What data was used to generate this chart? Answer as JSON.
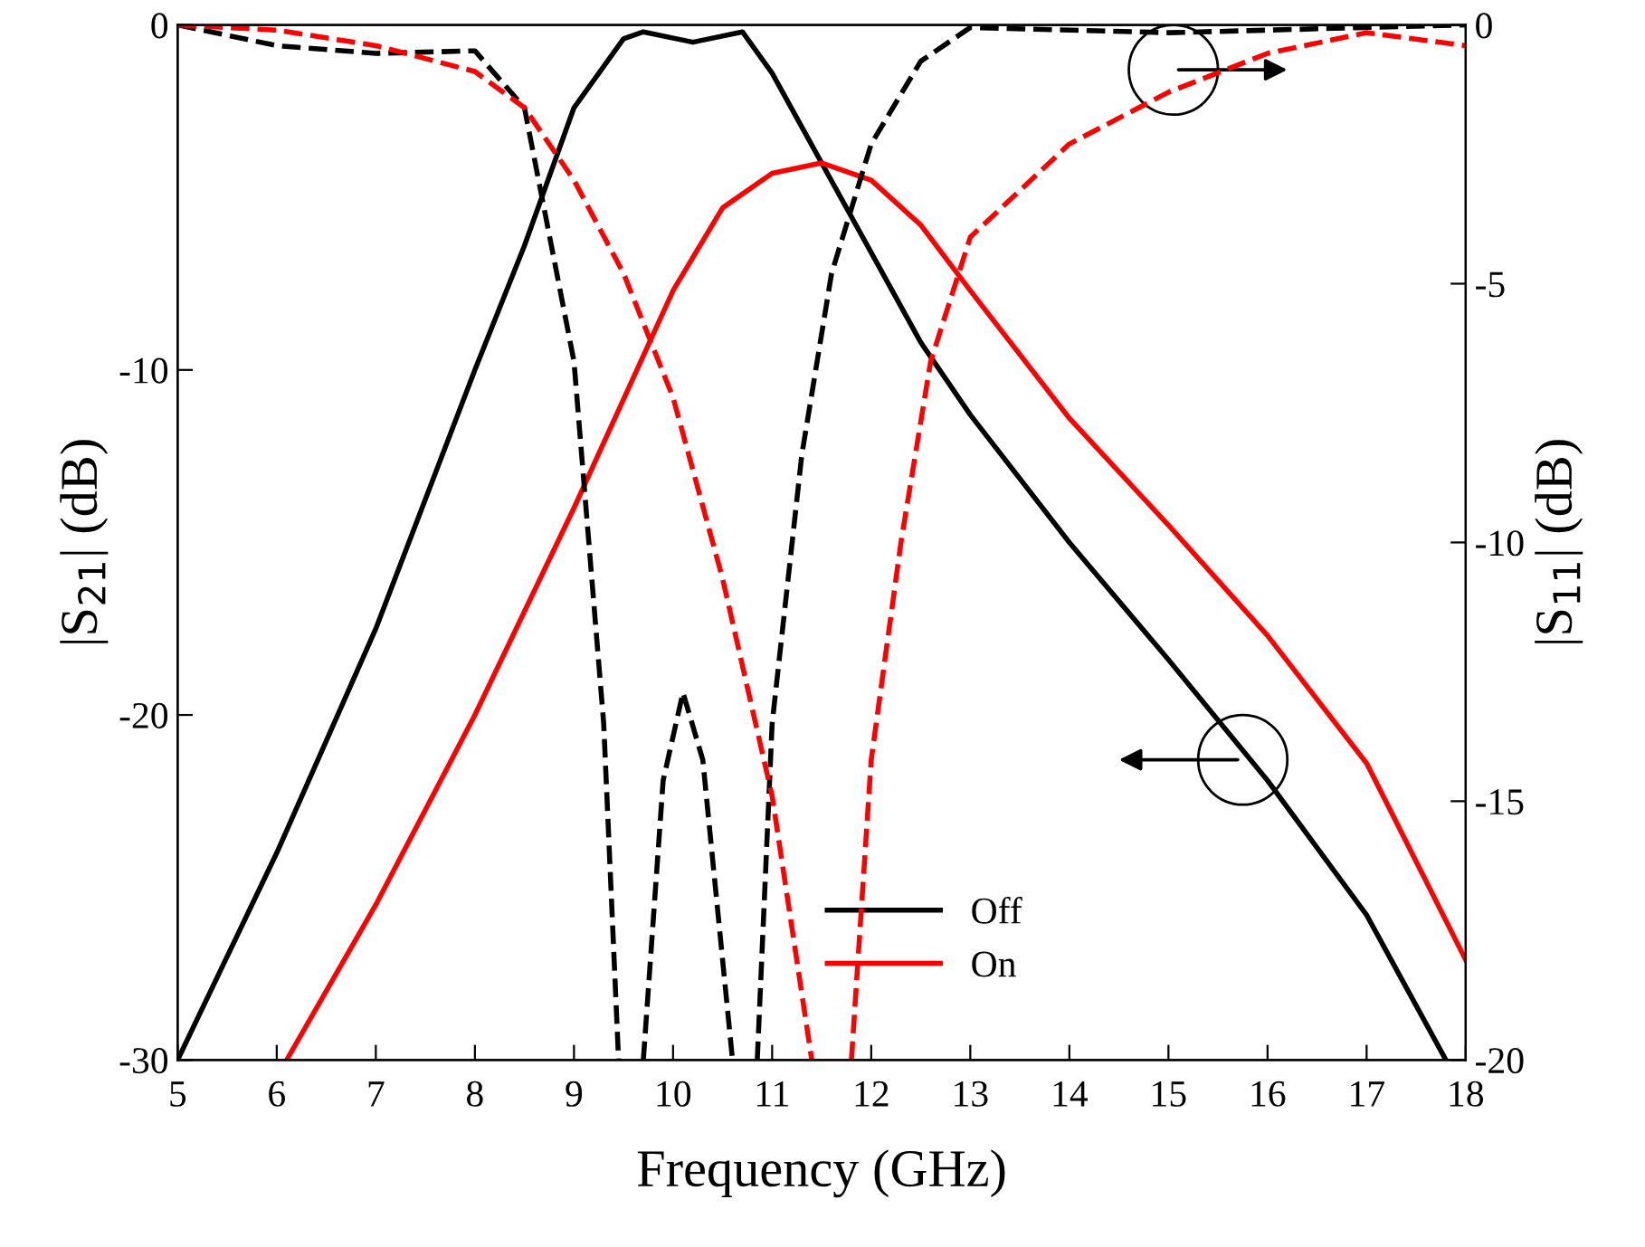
{
  "chart_data": {
    "type": "line",
    "xlabel": "Frequency (GHz)",
    "ylabel": "|S$_{21}$| (dB)",
    "y2label": "|S$_{11}$| (dB)",
    "xlim": [
      5,
      18
    ],
    "xticks": [
      5,
      6,
      7,
      8,
      9,
      10,
      11,
      12,
      13,
      14,
      15,
      16,
      17,
      18
    ],
    "ylim": [
      -30,
      0
    ],
    "yticks": [
      -30,
      -20,
      -10,
      0
    ],
    "y2lim": [
      -20,
      0
    ],
    "y2ticks": [
      -20,
      -15,
      -10,
      -5,
      0
    ],
    "grid": false,
    "legend": "bottom",
    "marker": "none",
    "series": [
      {
        "name": "Off",
        "color": "#000000",
        "line_style": "solid",
        "x": [
          5,
          6,
          7,
          8,
          8.5,
          9,
          9.5,
          9.7,
          10.2,
          10.7,
          11,
          11.5,
          12,
          12.5,
          13,
          14,
          15,
          16,
          17,
          17.8
        ],
        "values": [
          -30,
          -24,
          -17.5,
          -10,
          -6.4,
          -2.4,
          -0.4,
          -0.2,
          -0.5,
          -0.2,
          -1.4,
          -4,
          -6.6,
          -9.2,
          -11.3,
          -15,
          -18.4,
          -21.9,
          -25.8,
          -30
        ]
      },
      {
        "name": "On",
        "color": "#ff0000",
        "line_style": "solid",
        "x": [
          6.1,
          7,
          8,
          9,
          10,
          10.5,
          11,
          11.5,
          12,
          12.5,
          13,
          14,
          15,
          16,
          17,
          18
        ],
        "values": [
          -30,
          -25.5,
          -20,
          -14,
          -7.7,
          -5.3,
          -4.3,
          -4,
          -4.5,
          -5.8,
          -7.7,
          -11.4,
          -14.5,
          -17.7,
          -21.4,
          -27.1
        ]
      },
      {
        "color": "#000000",
        "line_style": "dashed",
        "axis": "y2",
        "x": [
          5,
          6,
          7,
          8,
          8.5,
          9,
          9.3,
          9.45,
          9.6,
          9.7,
          9.9,
          10.1,
          10.3,
          10.6,
          10.75,
          10.85,
          11,
          11.3,
          11.6,
          12,
          12.5,
          13,
          14,
          15,
          16,
          17,
          18
        ],
        "values": [
          0,
          -0.4,
          -0.55,
          -0.5,
          -1.6,
          -6.5,
          -13.5,
          -20,
          null,
          -20,
          -14.6,
          -12.9,
          -14.2,
          -20,
          null,
          -20,
          -13.5,
          -8.3,
          -4.8,
          -2.3,
          -0.7,
          -0.05,
          -0.1,
          -0.15,
          -0.1,
          -0.05,
          0
        ]
      },
      {
        "color": "#ff0000",
        "line_style": "dashed",
        "axis": "y2",
        "x": [
          5,
          6,
          7,
          8,
          8.5,
          9,
          9.5,
          10,
          10.5,
          11,
          11.4,
          11.6,
          11.8,
          12,
          12.3,
          12.6,
          13,
          14,
          15,
          16,
          17,
          18
        ],
        "values": [
          0,
          -0.1,
          -0.4,
          -0.9,
          -1.6,
          -3,
          -4.8,
          -7.2,
          -10.7,
          -14.9,
          -20,
          null,
          -20,
          -14.2,
          -10,
          -6.5,
          -4.1,
          -2.3,
          -1.3,
          -0.55,
          -0.15,
          -0.4
        ]
      }
    ]
  }
}
